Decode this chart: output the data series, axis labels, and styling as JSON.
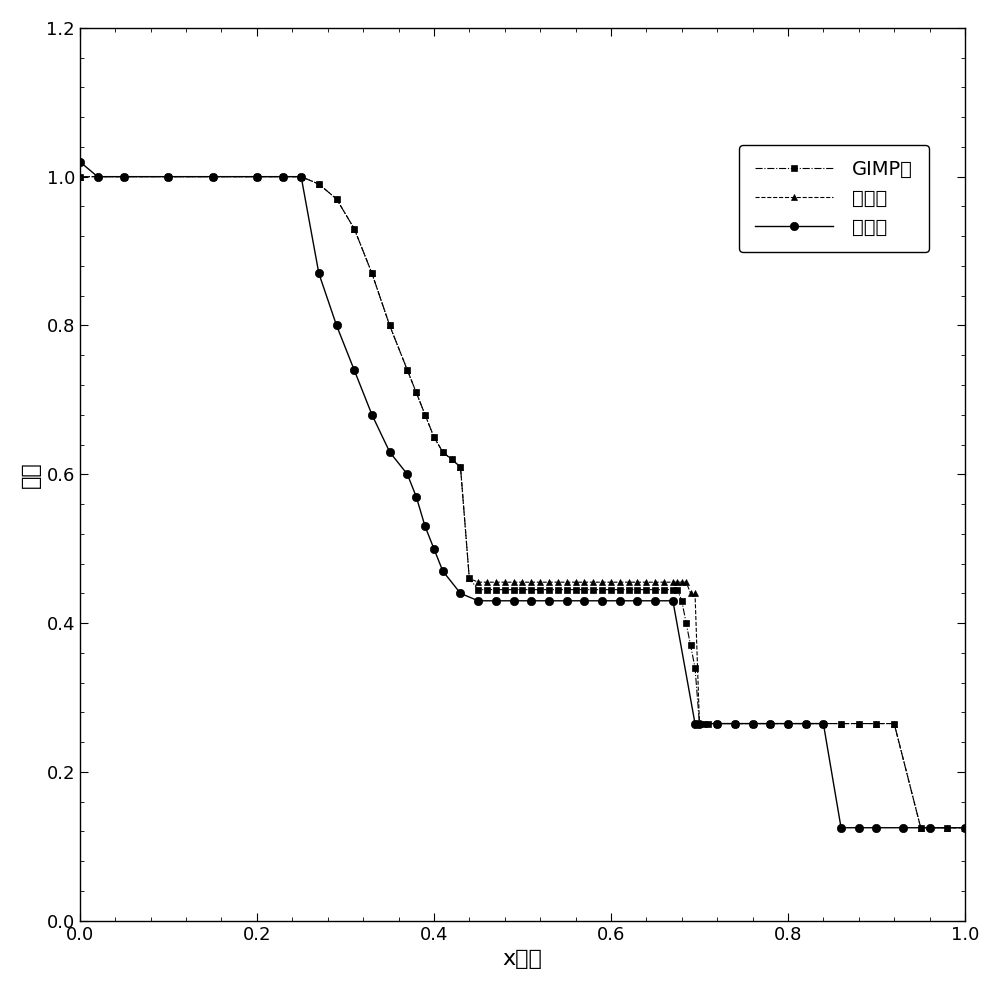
{
  "title": "",
  "xlabel": "x坐标",
  "ylabel": "密度",
  "xlim": [
    0.0,
    1.0
  ],
  "ylim": [
    0.0,
    1.2
  ],
  "xticks": [
    0.0,
    0.2,
    0.4,
    0.6,
    0.8,
    1.0
  ],
  "yticks": [
    0.0,
    0.2,
    0.4,
    0.6,
    0.8,
    1.0,
    1.2
  ],
  "legend_labels": [
    "GIMP法",
    "解析解",
    "本发明"
  ],
  "gimp_x": [
    0.0,
    0.05,
    0.1,
    0.15,
    0.2,
    0.23,
    0.25,
    0.27,
    0.29,
    0.31,
    0.33,
    0.35,
    0.37,
    0.38,
    0.39,
    0.4,
    0.41,
    0.42,
    0.43,
    0.44,
    0.45,
    0.46,
    0.47,
    0.48,
    0.49,
    0.5,
    0.51,
    0.52,
    0.53,
    0.54,
    0.55,
    0.56,
    0.57,
    0.58,
    0.59,
    0.6,
    0.61,
    0.62,
    0.63,
    0.64,
    0.65,
    0.66,
    0.67,
    0.675,
    0.68,
    0.685,
    0.69,
    0.695,
    0.7,
    0.705,
    0.71,
    0.72,
    0.74,
    0.76,
    0.78,
    0.8,
    0.82,
    0.84,
    0.86,
    0.88,
    0.9,
    0.92,
    0.95,
    0.98,
    1.0
  ],
  "gimp_y": [
    1.0,
    1.0,
    1.0,
    1.0,
    1.0,
    1.0,
    1.0,
    0.99,
    0.97,
    0.93,
    0.87,
    0.8,
    0.74,
    0.71,
    0.68,
    0.65,
    0.63,
    0.62,
    0.61,
    0.46,
    0.445,
    0.445,
    0.445,
    0.445,
    0.445,
    0.445,
    0.445,
    0.445,
    0.445,
    0.445,
    0.445,
    0.445,
    0.445,
    0.445,
    0.445,
    0.445,
    0.445,
    0.445,
    0.445,
    0.445,
    0.445,
    0.445,
    0.445,
    0.445,
    0.43,
    0.4,
    0.37,
    0.34,
    0.265,
    0.265,
    0.265,
    0.265,
    0.265,
    0.265,
    0.265,
    0.265,
    0.265,
    0.265,
    0.265,
    0.265,
    0.265,
    0.265,
    0.125,
    0.125,
    0.125
  ],
  "analytic_x": [
    0.0,
    0.05,
    0.1,
    0.15,
    0.2,
    0.23,
    0.25,
    0.27,
    0.29,
    0.31,
    0.33,
    0.35,
    0.37,
    0.38,
    0.39,
    0.4,
    0.41,
    0.42,
    0.43,
    0.44,
    0.45,
    0.46,
    0.47,
    0.48,
    0.49,
    0.5,
    0.51,
    0.52,
    0.53,
    0.54,
    0.55,
    0.56,
    0.57,
    0.58,
    0.59,
    0.6,
    0.61,
    0.62,
    0.63,
    0.64,
    0.65,
    0.66,
    0.67,
    0.675,
    0.68,
    0.685,
    0.69,
    0.695,
    0.7,
    0.72,
    0.74,
    0.76,
    0.78,
    0.8,
    0.82,
    0.84,
    0.86,
    0.88,
    0.9,
    0.92,
    0.95,
    0.98,
    1.0
  ],
  "analytic_y": [
    1.0,
    1.0,
    1.0,
    1.0,
    1.0,
    1.0,
    1.0,
    0.99,
    0.97,
    0.93,
    0.87,
    0.8,
    0.74,
    0.71,
    0.68,
    0.65,
    0.63,
    0.62,
    0.61,
    0.46,
    0.455,
    0.455,
    0.455,
    0.455,
    0.455,
    0.455,
    0.455,
    0.455,
    0.455,
    0.455,
    0.455,
    0.455,
    0.455,
    0.455,
    0.455,
    0.455,
    0.455,
    0.455,
    0.455,
    0.455,
    0.455,
    0.455,
    0.455,
    0.455,
    0.455,
    0.455,
    0.44,
    0.44,
    0.265,
    0.265,
    0.265,
    0.265,
    0.265,
    0.265,
    0.265,
    0.265,
    0.265,
    0.265,
    0.265,
    0.265,
    0.125,
    0.125,
    0.125
  ],
  "bspline_x": [
    0.0,
    0.02,
    0.05,
    0.1,
    0.15,
    0.2,
    0.23,
    0.25,
    0.27,
    0.29,
    0.31,
    0.33,
    0.35,
    0.37,
    0.38,
    0.39,
    0.4,
    0.41,
    0.43,
    0.45,
    0.47,
    0.49,
    0.51,
    0.53,
    0.55,
    0.57,
    0.59,
    0.61,
    0.63,
    0.65,
    0.67,
    0.695,
    0.7,
    0.72,
    0.74,
    0.76,
    0.78,
    0.8,
    0.82,
    0.84,
    0.86,
    0.88,
    0.9,
    0.93,
    0.96,
    1.0
  ],
  "bspline_y": [
    1.02,
    1.0,
    1.0,
    1.0,
    1.0,
    1.0,
    1.0,
    1.0,
    0.87,
    0.8,
    0.74,
    0.68,
    0.63,
    0.6,
    0.57,
    0.53,
    0.5,
    0.47,
    0.44,
    0.43,
    0.43,
    0.43,
    0.43,
    0.43,
    0.43,
    0.43,
    0.43,
    0.43,
    0.43,
    0.43,
    0.43,
    0.265,
    0.265,
    0.265,
    0.265,
    0.265,
    0.265,
    0.265,
    0.265,
    0.265,
    0.125,
    0.125,
    0.125,
    0.125,
    0.125,
    0.125
  ]
}
